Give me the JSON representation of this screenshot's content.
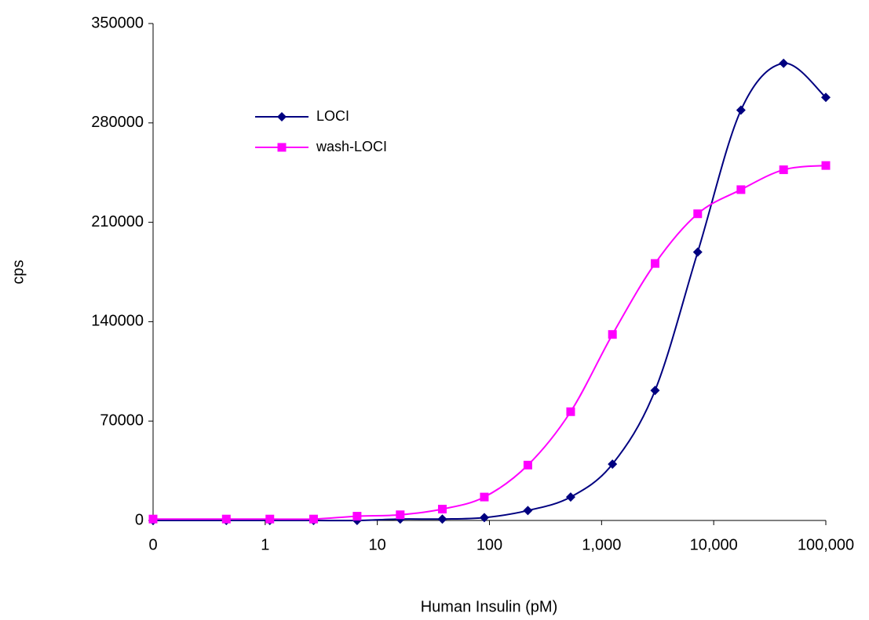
{
  "chart_data": {
    "type": "line",
    "x_label": "Human Insulin (pM)",
    "y_label": "cps",
    "x": [
      0.1,
      0.45,
      1.1,
      2.7,
      6.6,
      16,
      38,
      90,
      220,
      530,
      1250,
      3000,
      7200,
      17500,
      42000,
      100000
    ],
    "series": [
      {
        "name": "LOCI",
        "color": "#000080",
        "marker": "diamond",
        "values": [
          0,
          0,
          0,
          0,
          0,
          1000,
          1000,
          2000,
          7000,
          16500,
          39700,
          91600,
          189000,
          289000,
          322000,
          298000
        ]
      },
      {
        "name": "wash-LOCI",
        "color": "#ff00ff",
        "marker": "square",
        "values": [
          1000,
          1000,
          1000,
          1000,
          3000,
          4000,
          8000,
          16500,
          39000,
          76600,
          131000,
          181000,
          216000,
          233000,
          247000,
          250000
        ]
      }
    ],
    "xscale": "log",
    "xlim": [
      0.1,
      100000
    ],
    "xticks": [
      {
        "value": 0.1,
        "label": "0"
      },
      1,
      10,
      100,
      {
        "value": 1000,
        "label": "1,000"
      },
      {
        "value": 10000,
        "label": "10,000"
      },
      {
        "value": 100000,
        "label": "100,000"
      }
    ],
    "ylim": [
      0,
      350000
    ],
    "yticks": [
      0,
      70000,
      140000,
      210000,
      280000,
      350000
    ],
    "grid": false,
    "smooth": true,
    "legend": "upper-left"
  }
}
